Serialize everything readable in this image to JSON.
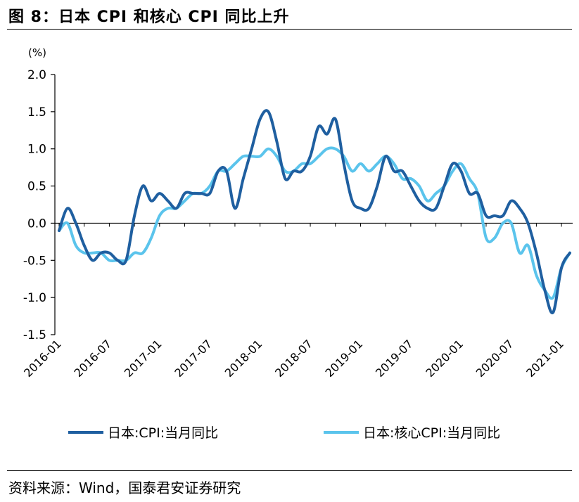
{
  "figure": {
    "title": "图 8：日本 CPI 和核心 CPI 同比上升",
    "source": "资料来源：Wind，国泰君安证券研究"
  },
  "chart_data": {
    "type": "line",
    "yunit": "(%)",
    "ylim": [
      -1.5,
      2.0
    ],
    "yticks": [
      2.0,
      1.5,
      1.0,
      0.5,
      0.0,
      -0.5,
      -1.0,
      -1.5
    ],
    "ytick_labels": [
      "2.0",
      "1.5",
      "1.0",
      "0.5",
      "0.0",
      "-0.5",
      "-1.0",
      "-1.5"
    ],
    "x": [
      "2016-01",
      "2016-02",
      "2016-03",
      "2016-04",
      "2016-05",
      "2016-06",
      "2016-07",
      "2016-08",
      "2016-09",
      "2016-10",
      "2016-11",
      "2016-12",
      "2017-01",
      "2017-02",
      "2017-03",
      "2017-04",
      "2017-05",
      "2017-06",
      "2017-07",
      "2017-08",
      "2017-09",
      "2017-10",
      "2017-11",
      "2017-12",
      "2018-01",
      "2018-02",
      "2018-03",
      "2018-04",
      "2018-05",
      "2018-06",
      "2018-07",
      "2018-08",
      "2018-09",
      "2018-10",
      "2018-11",
      "2018-12",
      "2019-01",
      "2019-02",
      "2019-03",
      "2019-04",
      "2019-05",
      "2019-06",
      "2019-07",
      "2019-08",
      "2019-09",
      "2019-10",
      "2019-11",
      "2019-12",
      "2020-01",
      "2020-02",
      "2020-03",
      "2020-04",
      "2020-05",
      "2020-06",
      "2020-07",
      "2020-08",
      "2020-09",
      "2020-10",
      "2020-11",
      "2020-12",
      "2021-01",
      "2021-02"
    ],
    "xtick_labels": [
      "2016-01",
      "2016-07",
      "2017-01",
      "2017-07",
      "2018-01",
      "2018-07",
      "2019-01",
      "2019-07",
      "2020-01",
      "2020-07",
      "2021-01"
    ],
    "xtick_every": 6,
    "grid": false,
    "legend_position": "bottom",
    "series": [
      {
        "name": "日本:CPI:当月同比",
        "color": "#1F5FA0",
        "values": [
          -0.1,
          0.2,
          0.0,
          -0.3,
          -0.5,
          -0.4,
          -0.4,
          -0.5,
          -0.5,
          0.1,
          0.5,
          0.3,
          0.4,
          0.3,
          0.2,
          0.4,
          0.4,
          0.4,
          0.4,
          0.7,
          0.7,
          0.2,
          0.6,
          1.0,
          1.4,
          1.5,
          1.1,
          0.6,
          0.7,
          0.7,
          0.9,
          1.3,
          1.2,
          1.4,
          0.8,
          0.3,
          0.2,
          0.2,
          0.5,
          0.9,
          0.7,
          0.7,
          0.5,
          0.3,
          0.2,
          0.2,
          0.5,
          0.8,
          0.7,
          0.4,
          0.4,
          0.1,
          0.1,
          0.1,
          0.3,
          0.2,
          0.0,
          -0.4,
          -0.9,
          -1.2,
          -0.6,
          -0.4
        ]
      },
      {
        "name": "日本:核心CPI:当月同比",
        "color": "#5BC4EC",
        "values": [
          -0.1,
          0.0,
          -0.3,
          -0.4,
          -0.4,
          -0.4,
          -0.5,
          -0.5,
          -0.5,
          -0.4,
          -0.4,
          -0.2,
          0.1,
          0.2,
          0.2,
          0.3,
          0.4,
          0.4,
          0.5,
          0.7,
          0.7,
          0.8,
          0.9,
          0.9,
          0.9,
          1.0,
          0.9,
          0.7,
          0.7,
          0.8,
          0.8,
          0.9,
          1.0,
          1.0,
          0.9,
          0.7,
          0.8,
          0.7,
          0.8,
          0.9,
          0.8,
          0.6,
          0.6,
          0.5,
          0.3,
          0.4,
          0.5,
          0.7,
          0.8,
          0.6,
          0.4,
          -0.2,
          -0.2,
          0.0,
          0.0,
          -0.4,
          -0.3,
          -0.7,
          -0.9,
          -1.0,
          -0.6,
          -0.4
        ]
      }
    ]
  }
}
